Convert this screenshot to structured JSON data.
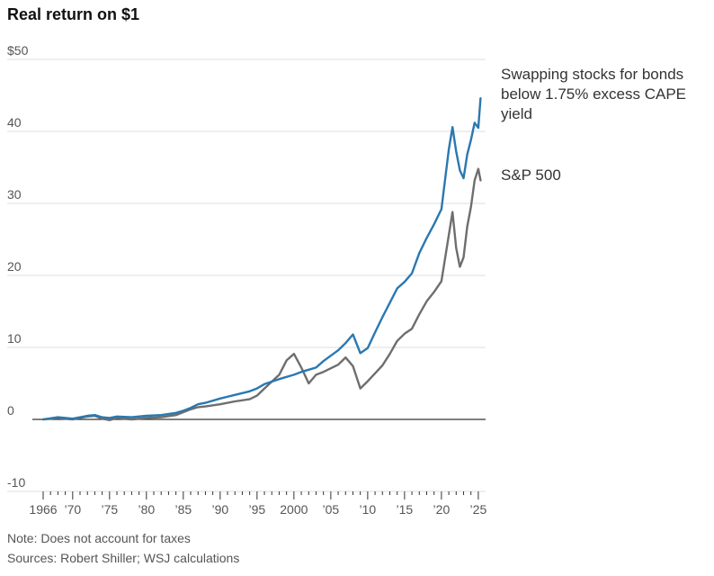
{
  "chart_title": "Real return on $1",
  "notes": {
    "note": "Note: Does not account for taxes",
    "sources": "Sources: Robert Shiller; WSJ calculations"
  },
  "colors": {
    "strategy": "#2a78b0",
    "sp500": "#6e6e6e",
    "grid": "#dddddd",
    "zero": "#333333"
  },
  "chart_data": {
    "type": "line",
    "title": "Real return on $1",
    "xlabel": "",
    "ylabel": "",
    "xlim": [
      1966,
      2025.5
    ],
    "ylim": [
      -10,
      50
    ],
    "y_ticks": [
      {
        "value": 50,
        "label": "$50"
      },
      {
        "value": 40,
        "label": "40"
      },
      {
        "value": 30,
        "label": "30"
      },
      {
        "value": 20,
        "label": "20"
      },
      {
        "value": 10,
        "label": "10"
      },
      {
        "value": 0,
        "label": "0"
      },
      {
        "value": -10,
        "label": "-10"
      }
    ],
    "x_ticks": [
      {
        "value": 1966,
        "label": "1966"
      },
      {
        "value": 1970,
        "label": "’70"
      },
      {
        "value": 1975,
        "label": "’75"
      },
      {
        "value": 1980,
        "label": "’80"
      },
      {
        "value": 1985,
        "label": "’85"
      },
      {
        "value": 1990,
        "label": "’90"
      },
      {
        "value": 1995,
        "label": "’95"
      },
      {
        "value": 2000,
        "label": "2000"
      },
      {
        "value": 2005,
        "label": "’05"
      },
      {
        "value": 2010,
        "label": "’10"
      },
      {
        "value": 2015,
        "label": "’15"
      },
      {
        "value": 2020,
        "label": "’20"
      },
      {
        "value": 2025,
        "label": "’25"
      }
    ],
    "grid": true,
    "series": [
      {
        "name": "Swapping stocks for bonds below 1.75% excess CAPE yield",
        "color": "#2a78b0",
        "x": [
          1966,
          1968,
          1970,
          1972,
          1973,
          1974,
          1975,
          1976,
          1978,
          1980,
          1982,
          1984,
          1985,
          1986,
          1987,
          1988,
          1990,
          1992,
          1994,
          1995,
          1996,
          1998,
          2000,
          2001,
          2002,
          2003,
          2004,
          2006,
          2007,
          2008,
          2009,
          2010,
          2011,
          2012,
          2013,
          2014,
          2015,
          2016,
          2017,
          2018,
          2019,
          2020,
          2021,
          2021.5,
          2022,
          2022.5,
          2023,
          2023.5,
          2024,
          2024.5,
          2025,
          2025.3
        ],
        "y": [
          0,
          0.3,
          0.1,
          0.5,
          0.6,
          0.3,
          0.2,
          0.4,
          0.3,
          0.5,
          0.6,
          0.9,
          1.2,
          1.6,
          2.1,
          2.3,
          2.9,
          3.4,
          3.9,
          4.3,
          4.9,
          5.6,
          6.2,
          6.6,
          6.9,
          7.2,
          8.1,
          9.6,
          10.6,
          11.8,
          9.2,
          9.9,
          12.1,
          14.2,
          16.2,
          18.2,
          19.1,
          20.3,
          23.1,
          25.2,
          27.1,
          29.2,
          37.5,
          40.6,
          37.2,
          34.6,
          33.5,
          36.8,
          38.8,
          41.2,
          40.5,
          44.6
        ]
      },
      {
        "name": "S&P 500",
        "color": "#6e6e6e",
        "x": [
          1966,
          1968,
          1970,
          1972,
          1973,
          1974,
          1975,
          1976,
          1978,
          1980,
          1982,
          1984,
          1985,
          1986,
          1987,
          1988,
          1990,
          1992,
          1994,
          1995,
          1996,
          1998,
          1999,
          2000,
          2001,
          2002,
          2003,
          2004,
          2006,
          2007,
          2008,
          2009,
          2010,
          2011,
          2012,
          2013,
          2014,
          2015,
          2016,
          2017,
          2018,
          2019,
          2020,
          2021,
          2021.5,
          2022,
          2022.5,
          2023,
          2023.5,
          2024,
          2024.5,
          2025,
          2025.3
        ],
        "y": [
          0,
          0.2,
          0,
          0.4,
          0.5,
          0.1,
          -0.1,
          0.2,
          0,
          0.2,
          0.3,
          0.6,
          1.0,
          1.4,
          1.7,
          1.8,
          2.1,
          2.5,
          2.8,
          3.3,
          4.3,
          6.2,
          8.2,
          9.1,
          7.2,
          5.0,
          6.2,
          6.6,
          7.6,
          8.6,
          7.4,
          4.3,
          5.3,
          6.4,
          7.5,
          9.1,
          10.9,
          11.9,
          12.6,
          14.6,
          16.4,
          17.7,
          19.2,
          25.6,
          28.8,
          23.8,
          21.2,
          22.5,
          26.8,
          29.5,
          33.2,
          34.8,
          33.2
        ]
      }
    ],
    "labels": [
      {
        "series": 0,
        "lines": [
          "Swapping stocks for bonds",
          "below 1.75% excess CAPE",
          "yield"
        ]
      },
      {
        "series": 1,
        "lines": [
          "S&P 500"
        ]
      }
    ]
  }
}
